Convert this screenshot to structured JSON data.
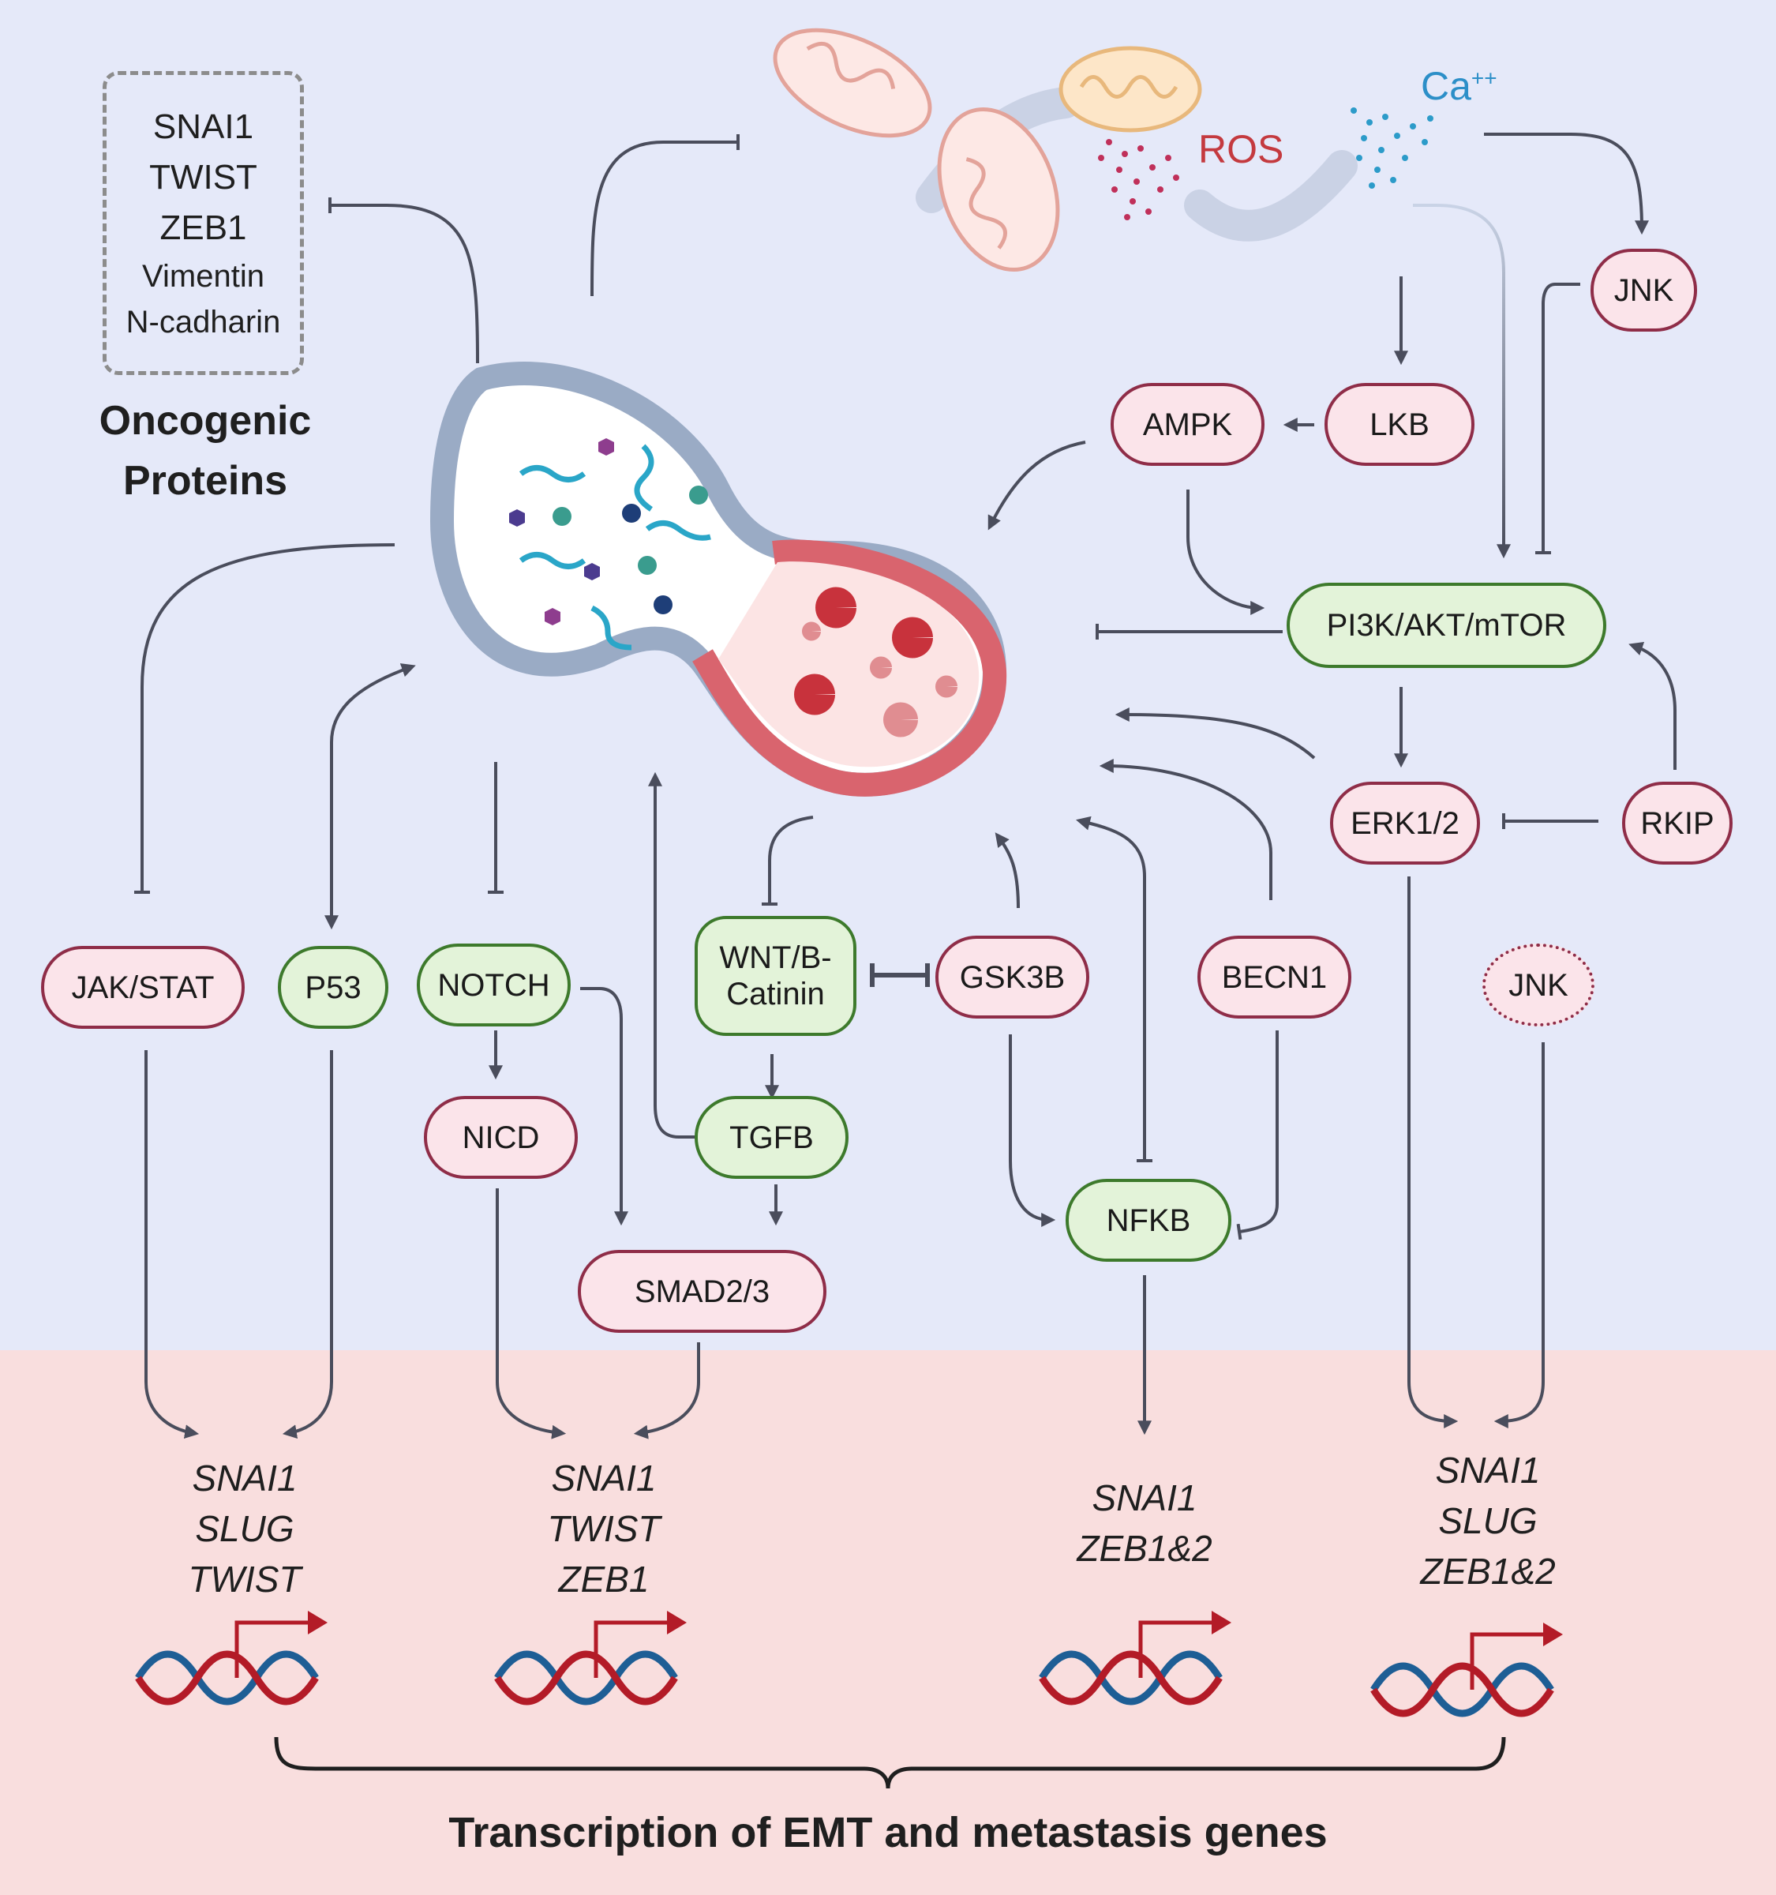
{
  "oncogenic": {
    "proteins": [
      "SNAI1",
      "TWIST",
      "ZEB1",
      "Vimentin",
      "N-cadharin"
    ],
    "title_line1": "Oncogenic",
    "title_line2": "Proteins"
  },
  "labels": {
    "ros": "ROS",
    "ca": "Ca",
    "ca_charge": "++"
  },
  "nodes": {
    "jnk_top": "JNK",
    "lkb": "LKB",
    "ampk": "AMPK",
    "pi3k": "PI3K/AKT/mTOR",
    "erk": "ERK1/2",
    "rkip": "RKIP",
    "jak": "JAK/STAT",
    "p53": "P53",
    "notch": "NOTCH",
    "wnt_line1": "WNT/B-",
    "wnt_line2": "Catinin",
    "gsk3b": "GSK3B",
    "becn1": "BECN1",
    "jnk_bottom": "JNK",
    "nicd": "NICD",
    "tgfb": "TGFB",
    "smad": "SMAD2/3",
    "nfkb": "NFKB"
  },
  "genes": {
    "group1": [
      "SNAI1",
      "SLUG",
      "TWIST"
    ],
    "group2": [
      "SNAI1",
      "TWIST",
      "ZEB1"
    ],
    "group3": [
      "SNAI1",
      "ZEB1&2"
    ],
    "group4": [
      "SNAI1",
      "SLUG",
      "ZEB1&2"
    ]
  },
  "footer": "Transcription of EMT and metastasis genes",
  "colors": {
    "pink_border": "#8f2d48",
    "pink_fill": "#fbe4ea",
    "green_border": "#3d7a2c",
    "green_fill": "#e3f3d9",
    "arrow": "#4a4d5c",
    "dna_red": "#b31b27",
    "dna_blue": "#1e5e95"
  }
}
